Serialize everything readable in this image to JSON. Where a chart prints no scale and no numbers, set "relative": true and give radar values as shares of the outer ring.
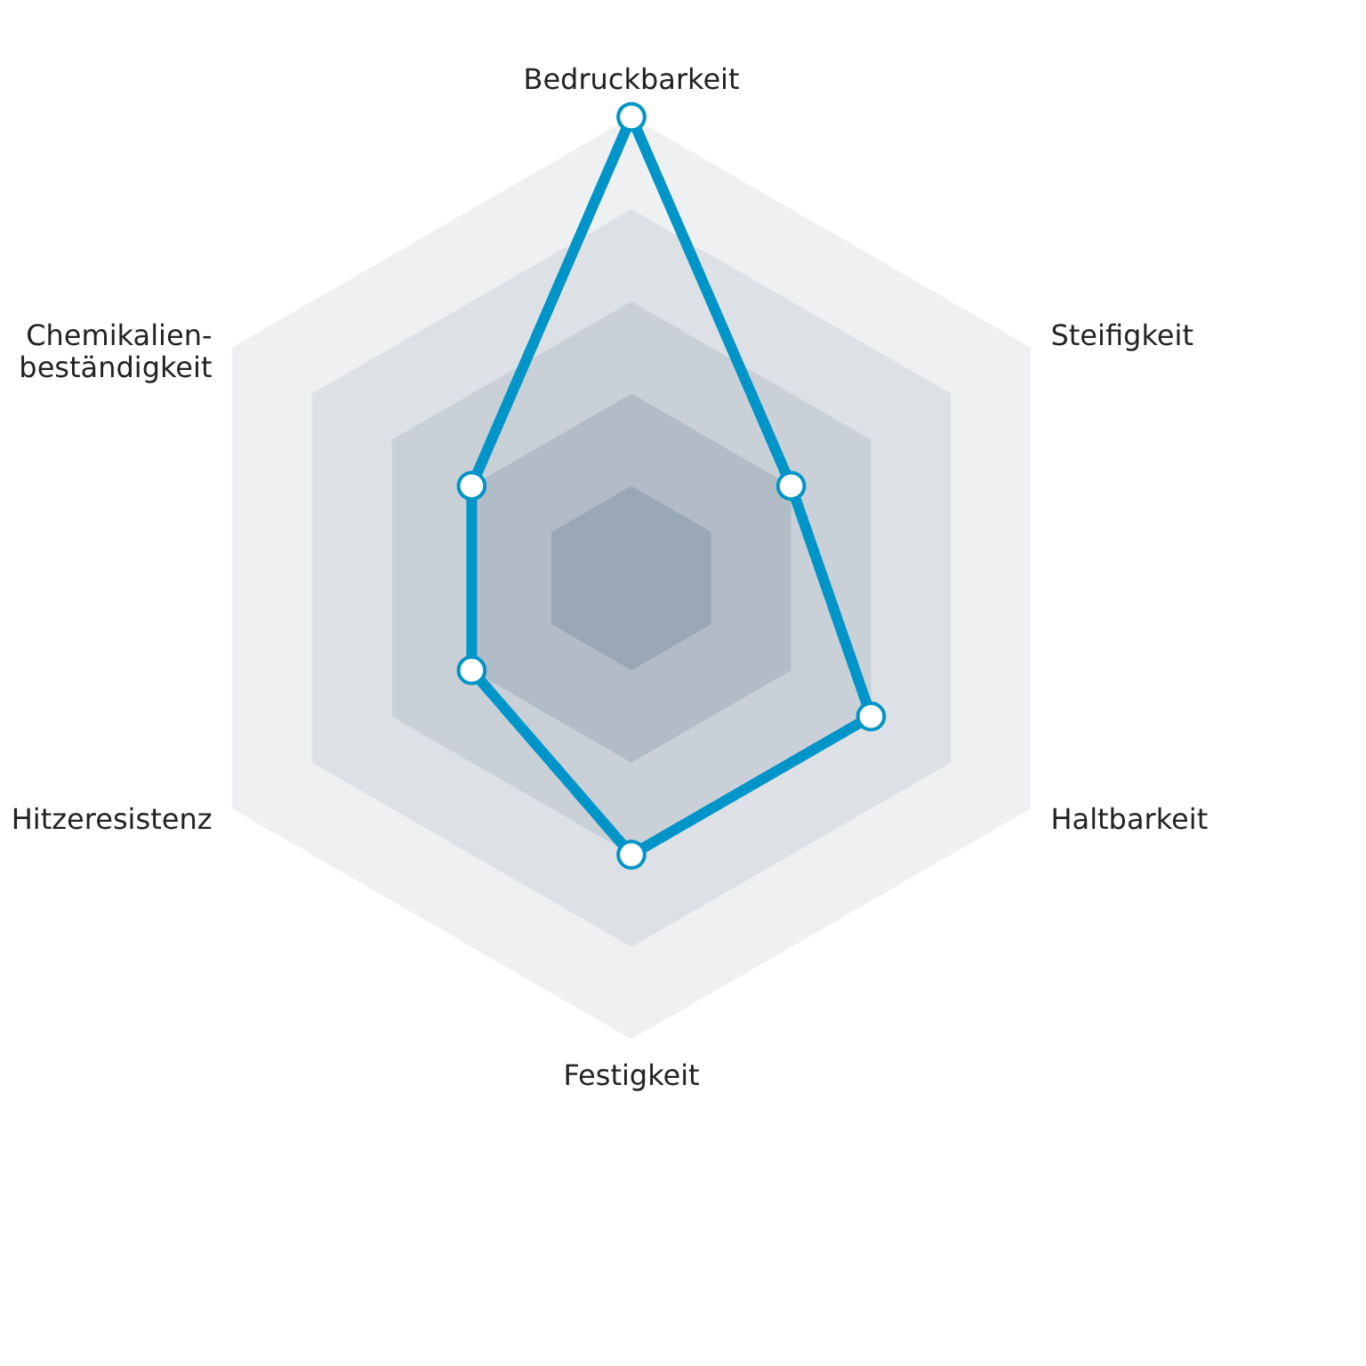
{
  "chart_data": {
    "type": "radar",
    "relative": true,
    "categories": [
      "Bedruckbarkeit",
      "Steifigkeit",
      "Haltbarkeit",
      "Festigkeit",
      "Hitzeresistenz",
      "Chemikalien-\nbeständigkeit"
    ],
    "series": [
      {
        "color": "#0095c8",
        "values": [
          1.0,
          0.4,
          0.6,
          0.6,
          0.4,
          0.4
        ]
      }
    ],
    "marker": "circle",
    "line_style": "solid",
    "grid": true
  }
}
